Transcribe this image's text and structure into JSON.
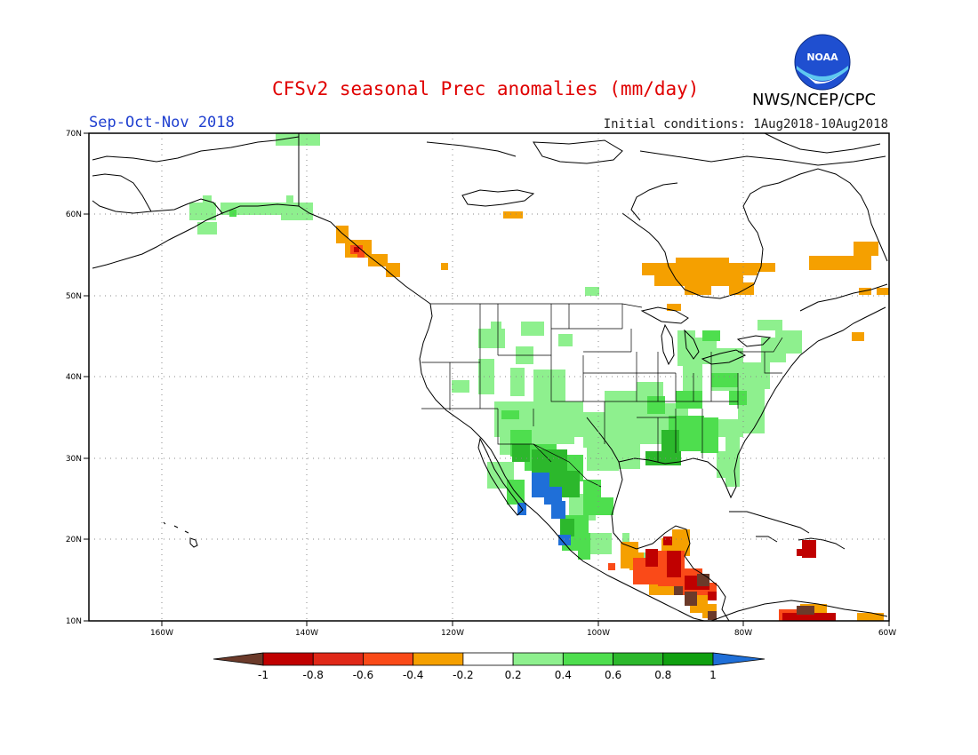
{
  "header": {
    "title": "CFSv2 seasonal Prec anomalies (mm/day)",
    "season": "Sep-Oct-Nov 2018",
    "initial_conditions": "Initial conditions: 1Aug2018-10Aug2018",
    "agency": "NWS/NCEP/CPC",
    "logo_text": "NOAA"
  },
  "map": {
    "projection": "lat-lon",
    "lon_range": [
      "170W",
      "60W"
    ],
    "lat_range": [
      "10N",
      "70N"
    ],
    "lat_labels": [
      "70N",
      "60N",
      "50N",
      "40N",
      "30N",
      "20N",
      "10N"
    ],
    "lon_labels": [
      "160W",
      "140W",
      "120W",
      "100W",
      "80W",
      "60W"
    ],
    "gridlines": "dotted"
  },
  "colorbar": {
    "ticks": [
      "-1",
      "-0.8",
      "-0.6",
      "-0.4",
      "-0.2",
      "0.2",
      "0.4",
      "0.6",
      "0.8",
      "1"
    ],
    "colors": [
      "#6b3a2a",
      "#c00000",
      "#e02818",
      "#fa4a18",
      "#f5a000",
      "#ffffff",
      "#8ef08e",
      "#4ede4e",
      "#2cb82c",
      "#10a010",
      "#1f6fd8"
    ]
  },
  "anomaly_regions": [
    {
      "region": "Alaska south coast",
      "sign": "wet",
      "level": "0.2-0.4"
    },
    {
      "region": "Southeast Alaska panhandle",
      "sign": "dry",
      "level": "-0.4 to -0.6"
    },
    {
      "region": "Hudson Bay / northern Ontario",
      "sign": "dry",
      "level": "-0.2 to -0.4"
    },
    {
      "region": "Northern Quebec / Labrador",
      "sign": "dry",
      "level": "-0.2 to -0.4"
    },
    {
      "region": "Northern Plains",
      "sign": "wet",
      "level": "0.2-0.4"
    },
    {
      "region": "Great Lakes / Northeast US",
      "sign": "wet",
      "level": "0.2-0.6"
    },
    {
      "region": "Southern Plains / Gulf Coast",
      "sign": "wet",
      "level": "0.2-0.8"
    },
    {
      "region": "Northwest Mexico / Sierra Madre",
      "sign": "wet",
      "level": "0.4->1"
    },
    {
      "region": "Yucatan / Central America",
      "sign": "dry",
      "level": "-0.2 to <-1"
    },
    {
      "region": "Hispaniola",
      "sign": "dry",
      "level": "-0.6 to -0.8"
    },
    {
      "region": "Northern South America coast",
      "sign": "dry",
      "level": "-0.4 to <-1"
    }
  ]
}
